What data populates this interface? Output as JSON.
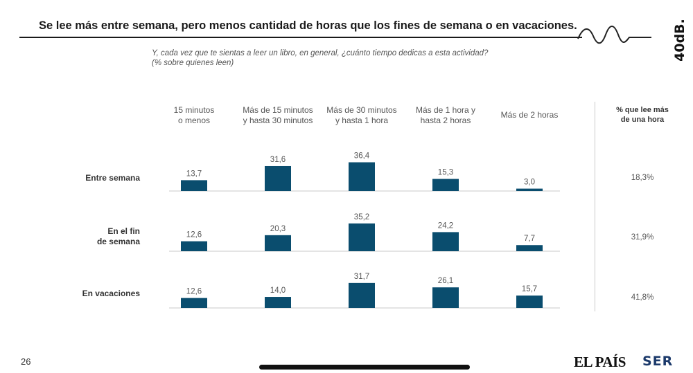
{
  "header": {
    "title": "Se lee más entre semana, pero menos cantidad de horas que los fines de semana o en vacaciones.",
    "brand": "40dB."
  },
  "subtitle": {
    "question": "Y, cada vez que te sientas a leer un libro, en general, ¿cuánto tiempo dedicas a esta actividad?",
    "note": "(% sobre quienes leen)"
  },
  "chart_data": {
    "type": "bar",
    "title": "Se lee más entre semana, pero menos cantidad de horas que los fines de semana o en vacaciones.",
    "categories": [
      [
        "15 minutos",
        "o menos"
      ],
      [
        "Más de 15 minutos",
        "y hasta 30 minutos"
      ],
      [
        "Más de 30 minutos",
        "y hasta 1 hora"
      ],
      [
        "Más de 1 hora y",
        "hasta 2 horas"
      ],
      [
        "Más de 2 horas"
      ]
    ],
    "series": [
      {
        "name": [
          "Entre semana"
        ],
        "values": [
          13.7,
          31.6,
          36.4,
          15.3,
          3.0
        ],
        "labels": [
          "13,7",
          "31,6",
          "36,4",
          "15,3",
          "3,0"
        ],
        "pct_more_than_hour": "18,3%"
      },
      {
        "name": [
          "En el fin",
          "de semana"
        ],
        "values": [
          12.6,
          20.3,
          35.2,
          24.2,
          7.7
        ],
        "labels": [
          "12,6",
          "20,3",
          "35,2",
          "24,2",
          "7,7"
        ],
        "pct_more_than_hour": "31,9%"
      },
      {
        "name": [
          "En vacaciones"
        ],
        "values": [
          12.6,
          14.0,
          31.7,
          26.1,
          15.7
        ],
        "labels": [
          "12,6",
          "14,0",
          "31,7",
          "26,1",
          "15,7"
        ],
        "pct_more_than_hour": "41,8%"
      }
    ],
    "extra_column_header": [
      "% que lee más",
      "de una hora"
    ],
    "bar_color": "#0a4d6e",
    "ylim": [
      0,
      40
    ]
  },
  "footer": {
    "page_number": "26",
    "logo_left": "EL PAÍS",
    "logo_right": "SER"
  }
}
